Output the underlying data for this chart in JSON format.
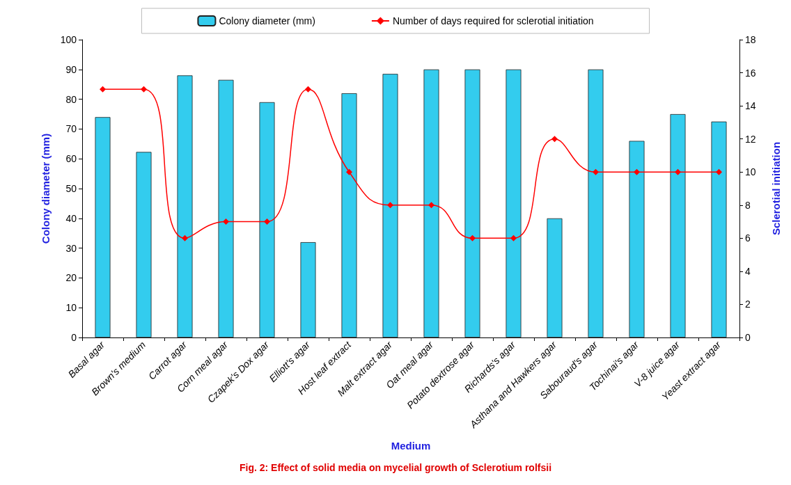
{
  "chart_data": {
    "type": "bar",
    "xlabel": "Medium",
    "ylabel": "Colony diameter (mm)",
    "y2label": "Sclerotial initiation",
    "categories": [
      "Basal agar",
      "Brown's medium",
      "Carrot agar",
      "Corn meal agar",
      "Czapek's Dox agar",
      "Elliott's agar",
      "Host leaf extract",
      "Malt extract agar",
      "Oat meal agar",
      "Potato dextrose agar",
      "Richards's agar",
      "Asthana and Hawkers agar",
      "Sabouraud's agar",
      "Tochinai's agar",
      "V-8 juice agar",
      "Yeast extract agar"
    ],
    "series": [
      {
        "name": "Colony diameter (mm)",
        "color": "#33ccee",
        "values": [
          74,
          62.3,
          88,
          86.5,
          79,
          32,
          82,
          88.5,
          90,
          90,
          90,
          40,
          90,
          66,
          75,
          72.5
        ]
      },
      {
        "name": "Number of days required for sclerotial initiation",
        "type": "line",
        "axis": "y2",
        "color": "#ff0000",
        "marker": "diamond",
        "values": [
          15,
          15,
          6,
          7,
          7,
          15,
          10,
          8,
          8,
          6,
          6,
          12,
          10,
          10,
          10,
          10
        ]
      }
    ],
    "ylim": [
      0,
      100
    ],
    "yticks": [
      0,
      10,
      20,
      30,
      40,
      50,
      60,
      70,
      80,
      90,
      100
    ],
    "y2lim": [
      0,
      18
    ],
    "y2ticks": [
      0,
      2,
      4,
      6,
      8,
      10,
      12,
      14,
      16,
      18
    ],
    "grid": false,
    "legend": "top",
    "annotations": [
      "Fig. 2: Effect of solid media on mycelial growth of Sclerotium rolfsii"
    ]
  }
}
